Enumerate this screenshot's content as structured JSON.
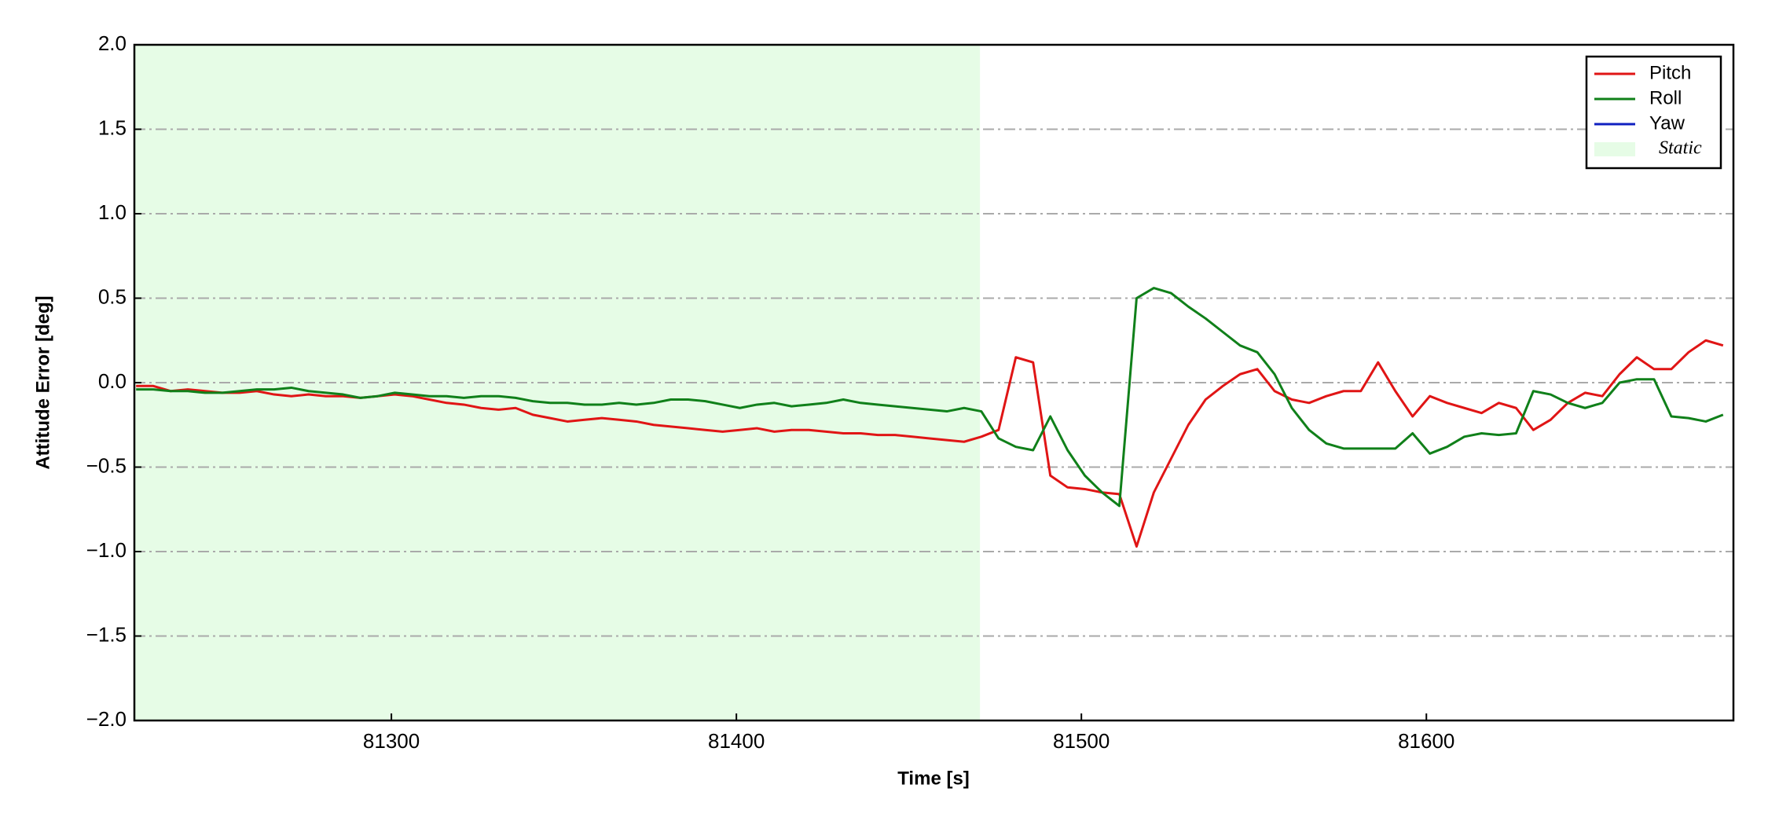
{
  "chart_data": {
    "type": "line",
    "x_label": "Time [s]",
    "y_label": "Attitude Error [deg]",
    "xlim": [
      81225.5,
      81689
    ],
    "ylim": [
      -2.0,
      2.0
    ],
    "xticks": [
      81300,
      81400,
      81500,
      81600
    ],
    "yticks": [
      {
        "value": -2.0,
        "label": "−2.0"
      },
      {
        "value": -1.5,
        "label": "−1.5"
      },
      {
        "value": -1.0,
        "label": "−1.0"
      },
      {
        "value": -0.5,
        "label": "−0.5"
      },
      {
        "value": 0.0,
        "label": "0.0"
      },
      {
        "value": 0.5,
        "label": "0.5"
      },
      {
        "value": 1.0,
        "label": "1.0"
      },
      {
        "value": 1.5,
        "label": "1.5"
      },
      {
        "value": 2.0,
        "label": "2.0"
      }
    ],
    "grid": true,
    "legend": "upper right",
    "shaded_region": {
      "label": "Static",
      "color": "#e6fce6",
      "xlim": [
        81225.5,
        81470.6
      ]
    },
    "x": [
      81226,
      81231,
      81236,
      81241,
      81246,
      81251,
      81256,
      81261,
      81266,
      81271,
      81276,
      81281,
      81286,
      81291,
      81296,
      81301,
      81306,
      81311,
      81316,
      81321,
      81326,
      81331,
      81336,
      81341,
      81346,
      81351,
      81356,
      81361,
      81366,
      81371,
      81376,
      81381,
      81386,
      81391,
      81396,
      81401,
      81406,
      81411,
      81416,
      81421,
      81426,
      81431,
      81436,
      81441,
      81446,
      81451,
      81456,
      81461,
      81466,
      81471,
      81476,
      81481,
      81486,
      81491,
      81496,
      81501,
      81506,
      81511,
      81516,
      81521,
      81526,
      81531,
      81536,
      81541,
      81546,
      81551,
      81556,
      81561,
      81566,
      81571,
      81576,
      81581,
      81586,
      81591,
      81596,
      81601,
      81606,
      81611,
      81616,
      81621,
      81626,
      81631,
      81636,
      81641,
      81646,
      81651,
      81656,
      81661,
      81666,
      81671,
      81676,
      81681,
      81686
    ],
    "series": [
      {
        "name": "Pitch",
        "color": "#e01515",
        "values": [
          -0.02,
          -0.02,
          -0.05,
          -0.04,
          -0.05,
          -0.06,
          -0.06,
          -0.05,
          -0.07,
          -0.08,
          -0.07,
          -0.08,
          -0.08,
          -0.09,
          -0.08,
          -0.07,
          -0.08,
          -0.1,
          -0.12,
          -0.13,
          -0.15,
          -0.16,
          -0.15,
          -0.19,
          -0.21,
          -0.23,
          -0.22,
          -0.21,
          -0.22,
          -0.23,
          -0.25,
          -0.26,
          -0.27,
          -0.28,
          -0.29,
          -0.28,
          -0.27,
          -0.29,
          -0.28,
          -0.28,
          -0.29,
          -0.3,
          -0.3,
          -0.31,
          -0.31,
          -0.32,
          -0.33,
          -0.34,
          -0.35,
          -0.32,
          -0.28,
          0.15,
          0.12,
          -0.55,
          -0.62,
          -0.63,
          -0.65,
          -0.66,
          -0.97,
          -0.65,
          -0.45,
          -0.25,
          -0.1,
          -0.02,
          0.05,
          0.08,
          -0.05,
          -0.1,
          -0.12,
          -0.08,
          -0.05,
          -0.05,
          0.12,
          -0.05,
          -0.2,
          -0.08,
          -0.12,
          -0.15,
          -0.18,
          -0.12,
          -0.15,
          -0.28,
          -0.22,
          -0.12,
          -0.06,
          -0.08,
          0.05,
          0.15,
          0.08,
          0.08,
          0.18,
          0.25,
          0.22
        ]
      },
      {
        "name": "Roll",
        "color": "#10801a",
        "values": [
          -0.04,
          -0.04,
          -0.05,
          -0.05,
          -0.06,
          -0.06,
          -0.05,
          -0.04,
          -0.04,
          -0.03,
          -0.05,
          -0.06,
          -0.07,
          -0.09,
          -0.08,
          -0.06,
          -0.07,
          -0.08,
          -0.08,
          -0.09,
          -0.08,
          -0.08,
          -0.09,
          -0.11,
          -0.12,
          -0.12,
          -0.13,
          -0.13,
          -0.12,
          -0.13,
          -0.12,
          -0.1,
          -0.1,
          -0.11,
          -0.13,
          -0.15,
          -0.13,
          -0.12,
          -0.14,
          -0.13,
          -0.12,
          -0.1,
          -0.12,
          -0.13,
          -0.14,
          -0.15,
          -0.16,
          -0.17,
          -0.15,
          -0.17,
          -0.33,
          -0.38,
          -0.4,
          -0.2,
          -0.4,
          -0.55,
          -0.65,
          -0.73,
          0.5,
          0.56,
          0.53,
          0.45,
          0.38,
          0.3,
          0.22,
          0.18,
          0.05,
          -0.15,
          -0.28,
          -0.36,
          -0.39,
          -0.39,
          -0.39,
          -0.39,
          -0.3,
          -0.42,
          -0.38,
          -0.32,
          -0.3,
          -0.31,
          -0.3,
          -0.05,
          -0.07,
          -0.12,
          -0.15,
          -0.12,
          0.0,
          0.02,
          0.02,
          -0.2,
          -0.21,
          -0.23,
          -0.19
        ]
      },
      {
        "name": "Yaw",
        "color": "#1020c0",
        "values": [
          null,
          null,
          null,
          null,
          null,
          null,
          null,
          null,
          null,
          null,
          null,
          null,
          null,
          null,
          null,
          null,
          null,
          null,
          null,
          null,
          null,
          null,
          null,
          null,
          null,
          null,
          null,
          null,
          null,
          null,
          null,
          null,
          null,
          null,
          null,
          null,
          null,
          null,
          null,
          null,
          null,
          null,
          null,
          null,
          null,
          null,
          null,
          null,
          null,
          null,
          null,
          null,
          null,
          null,
          null,
          null,
          null,
          null,
          null,
          null,
          null,
          null,
          null,
          null,
          null,
          null,
          null,
          null,
          null,
          null,
          null,
          null,
          null,
          null,
          null,
          null,
          null,
          null,
          null,
          null,
          null,
          null,
          null,
          null,
          null,
          null,
          null,
          null,
          null,
          null,
          null,
          null,
          null
        ]
      }
    ]
  }
}
